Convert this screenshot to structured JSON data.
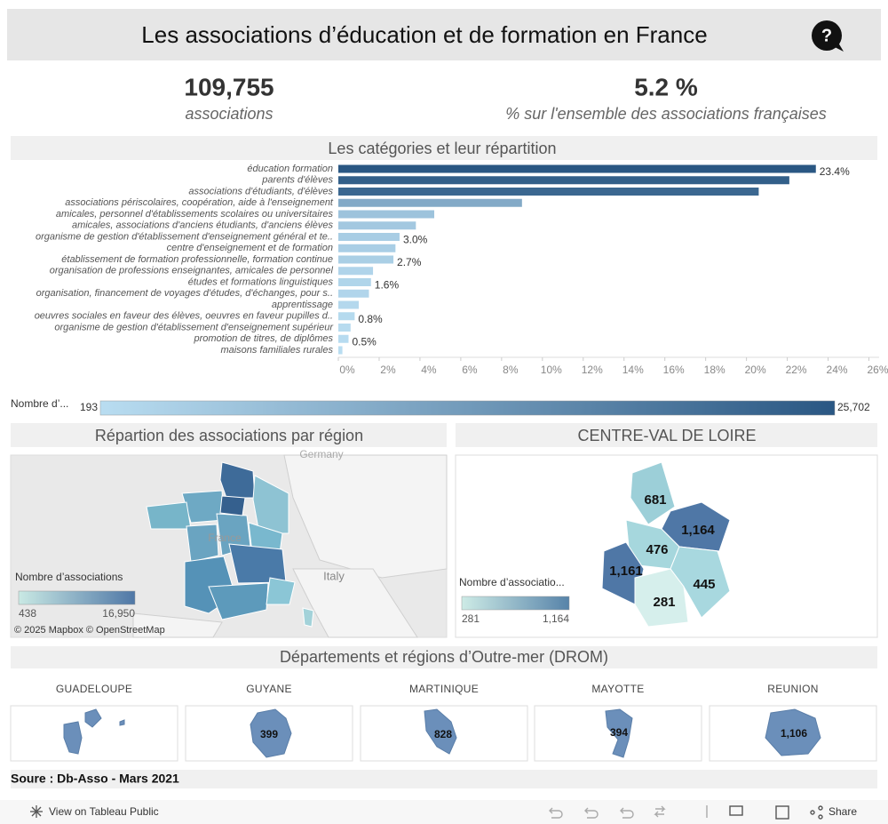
{
  "header": {
    "title": "Les associations d’éducation et de formation en France",
    "help": "?"
  },
  "kpis": [
    {
      "value": "109,755",
      "label": "associations"
    },
    {
      "value": "5.2 %",
      "label": "% sur l'ensemble des associations françaises"
    }
  ],
  "chart_data": {
    "type": "bar",
    "orientation": "horizontal",
    "title": "Les catégories et leur répartition",
    "categories": [
      "éducation formation",
      "parents d'élèves",
      "associations d'étudiants, d'élèves",
      "associations périscolaires, coopération, aide à l'enseignement",
      "amicales, personnel d'établissements scolaires ou universitaires",
      "amicales, associations d'anciens étudiants, d'anciens élèves",
      "organisme de gestion d'établissement d'enseignement général et te..",
      "centre d'enseignement et de formation",
      "établissement de formation professionnelle, formation continue",
      "organisation de professions enseignantes, amicales de personnel",
      "études et formations linguistiques",
      "organisation, financement de voyages d'études, d'échanges, pour s..",
      "apprentissage",
      "oeuvres sociales en faveur des élèves, oeuvres en faveur pupilles d..",
      "organisme de gestion d'établissement d'enseignement supérieur",
      "promotion de titres, de diplômes",
      "maisons familiales rurales"
    ],
    "values": [
      23.4,
      22.1,
      20.6,
      9.0,
      4.7,
      3.8,
      3.0,
      2.8,
      2.7,
      1.7,
      1.6,
      1.5,
      1.0,
      0.8,
      0.6,
      0.5,
      0.2
    ],
    "value_labels": [
      "23.4%",
      null,
      null,
      null,
      null,
      null,
      "3.0%",
      null,
      "2.7%",
      null,
      "1.6%",
      null,
      null,
      "0.8%",
      null,
      "0.5%",
      null
    ],
    "xlim": [
      0,
      26.5
    ],
    "xticks": [
      {
        "value": 0,
        "label": "0%"
      },
      {
        "value": 2,
        "label": "2%"
      },
      {
        "value": 4,
        "label": "4%"
      },
      {
        "value": 6,
        "label": "6%"
      },
      {
        "value": 8,
        "label": "8%"
      },
      {
        "value": 10,
        "label": "10%"
      },
      {
        "value": 12,
        "label": "12%"
      },
      {
        "value": 14,
        "label": "14%"
      },
      {
        "value": 16,
        "label": "16%"
      },
      {
        "value": 18,
        "label": "18%"
      },
      {
        "value": 20,
        "label": "20%"
      },
      {
        "value": 22,
        "label": "22%"
      },
      {
        "value": 24,
        "label": "24%"
      },
      {
        "value": 26,
        "label": "26%"
      }
    ],
    "color_scale": {
      "title": "Nombre d’...",
      "min": "193",
      "max": "25,702",
      "colors": [
        "#b9ddf1",
        "#2a5783"
      ]
    }
  },
  "region_map": {
    "title": "Répartion des associations par région",
    "places": [
      "Germany",
      "France",
      "Italy"
    ],
    "legend": {
      "title": "Nombre d’associations",
      "min": "438",
      "max": "16,950"
    },
    "attribution": "© 2025 Mapbox  © OpenStreetMap"
  },
  "centre": {
    "title": "CENTRE-VAL DE LOIRE",
    "departments": [
      "681",
      "1,164",
      "476",
      "1,161",
      "445",
      "281"
    ],
    "legend": {
      "title": "Nombre d’associatio...",
      "min": "281",
      "max": "1,164"
    }
  },
  "drom": {
    "title": "Départements et régions d’Outre-mer (DROM)",
    "regions": [
      {
        "name": "GUADELOUPE"
      },
      {
        "name": "GUYANE",
        "value": "399"
      },
      {
        "name": "MARTINIQUE",
        "value": "828"
      },
      {
        "name": "MAYOTTE",
        "value": "394"
      },
      {
        "name": "REUNION",
        "value": "1,106"
      }
    ]
  },
  "source": "Soure : Db-Asso - Mars 2021",
  "toolbar": {
    "view": "View on Tableau Public",
    "share": "Share"
  }
}
